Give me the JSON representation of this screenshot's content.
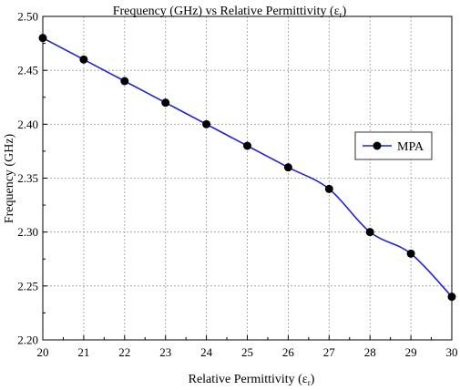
{
  "chart_data": {
    "type": "line",
    "title": "Frequency (GHz) vs Relative Permittivity (ε",
    "title_subscript": "r",
    "title_suffix": ")",
    "xlabel": "Relative Permittivity (ε",
    "xlabel_subscript": "r",
    "xlabel_suffix": ")",
    "ylabel": "Frequency (GHz)",
    "xlim": [
      20,
      30
    ],
    "ylim": [
      2.2,
      2.5
    ],
    "x_ticks": [
      "20",
      "21",
      "22",
      "23",
      "24",
      "25",
      "26",
      "27",
      "28",
      "29",
      "30"
    ],
    "y_ticks": [
      "2.20",
      "2.25",
      "2.30",
      "2.35",
      "2.40",
      "2.45",
      "2.50"
    ],
    "grid": true,
    "legend_position": "center-right",
    "series": [
      {
        "name": "MPA",
        "color": "#1f1fe0",
        "marker_color": "#000000",
        "x": [
          20,
          21,
          22,
          23,
          24,
          25,
          26,
          27,
          28,
          29,
          30
        ],
        "y": [
          2.48,
          2.46,
          2.44,
          2.42,
          2.4,
          2.38,
          2.36,
          2.34,
          2.3,
          2.28,
          2.24
        ]
      }
    ]
  }
}
